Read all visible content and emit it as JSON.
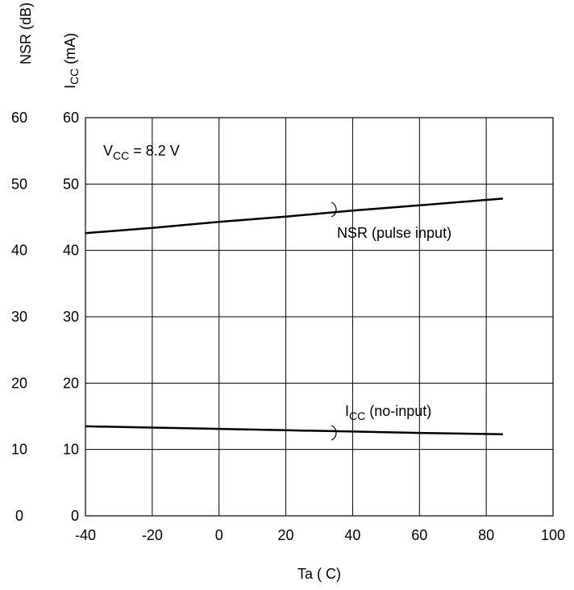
{
  "chart_data": {
    "type": "line",
    "y_left_label_main": "NSR (dB)",
    "y_right_label_main": "I",
    "y_right_label_sub": "CC",
    "y_right_label_tail": " (mA)",
    "xlabel": "Ta ( C)",
    "xlim": [
      -40,
      100
    ],
    "ylim": [
      0,
      60
    ],
    "x_ticks": [
      "-40",
      "-20",
      "0",
      "20",
      "40",
      "60",
      "80",
      "100"
    ],
    "y_ticks": [
      "0",
      "10",
      "20",
      "30",
      "40",
      "50",
      "60"
    ],
    "grid": true,
    "condition": {
      "main": "V",
      "sub": "CC",
      "tail": " = 8.2 V"
    },
    "series": [
      {
        "name": "NSR (pulse input)",
        "x": [
          -40,
          -20,
          0,
          20,
          40,
          60,
          85
        ],
        "y": [
          42.6,
          43.4,
          44.3,
          45.1,
          46.0,
          46.8,
          47.8
        ]
      },
      {
        "name_main": "I",
        "name_sub": "CC",
        "name_tail": " (no-input)",
        "x": [
          -40,
          -20,
          0,
          20,
          40,
          60,
          85
        ],
        "y": [
          13.5,
          13.3,
          13.1,
          12.9,
          12.7,
          12.5,
          12.3
        ]
      }
    ]
  }
}
